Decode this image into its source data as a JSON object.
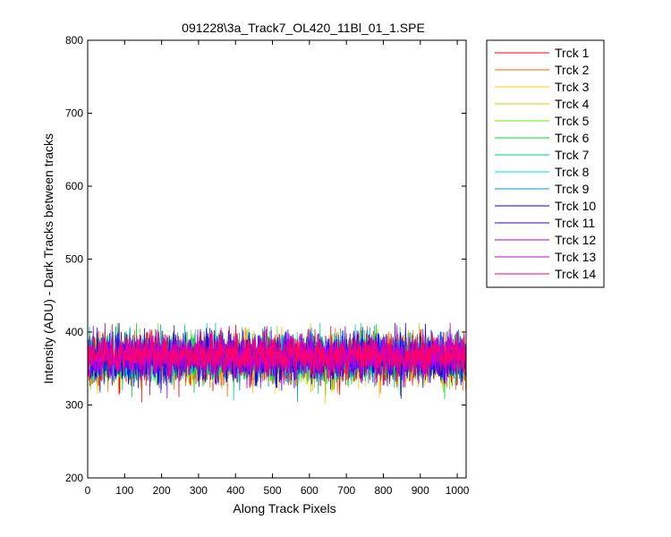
{
  "chart_data": {
    "type": "line",
    "title": "091228\\3a_Track7_OL420_11Bl_01_1.SPE",
    "xlabel": "Along Track Pixels",
    "ylabel": "Intensity (ADU) - Dark Tracks between tracks",
    "xlim": [
      0,
      1024
    ],
    "ylim": [
      200,
      800
    ],
    "x_ticks": [
      "0",
      "100",
      "200",
      "300",
      "400",
      "500",
      "600",
      "700",
      "800",
      "900",
      "1000"
    ],
    "y_ticks": [
      "200",
      "300",
      "400",
      "500",
      "600",
      "700",
      "800"
    ],
    "grid": false,
    "legend_position": "outside-right-top",
    "num_points": 1024,
    "series": [
      {
        "name": "Trck 1",
        "color": "#ff0000",
        "mean": 360,
        "noise": 16
      },
      {
        "name": "Trck 2",
        "color": "#ff6600",
        "mean": 361,
        "noise": 16
      },
      {
        "name": "Trck 3",
        "color": "#ffcc00",
        "mean": 362,
        "noise": 15
      },
      {
        "name": "Trck 4",
        "color": "#cccc00",
        "mean": 362,
        "noise": 15
      },
      {
        "name": "Trck 5",
        "color": "#66ee00",
        "mean": 363,
        "noise": 15
      },
      {
        "name": "Trck 6",
        "color": "#00dd33",
        "mean": 364,
        "noise": 15
      },
      {
        "name": "Trck 7",
        "color": "#00cc88",
        "mean": 365,
        "noise": 15
      },
      {
        "name": "Trck 8",
        "color": "#00ddcc",
        "mean": 366,
        "noise": 15
      },
      {
        "name": "Trck 9",
        "color": "#0099cc",
        "mean": 366,
        "noise": 15
      },
      {
        "name": "Trck 10",
        "color": "#0000ff",
        "mean": 363,
        "noise": 16
      },
      {
        "name": "Trck 11",
        "color": "#3300cc",
        "mean": 366,
        "noise": 15
      },
      {
        "name": "Trck 12",
        "color": "#9900ff",
        "mean": 367,
        "noise": 15
      },
      {
        "name": "Trck 13",
        "color": "#cc00cc",
        "mean": 367,
        "noise": 14
      },
      {
        "name": "Trck 14",
        "color": "#ff0066",
        "mean": 368,
        "noise": 14
      }
    ]
  }
}
